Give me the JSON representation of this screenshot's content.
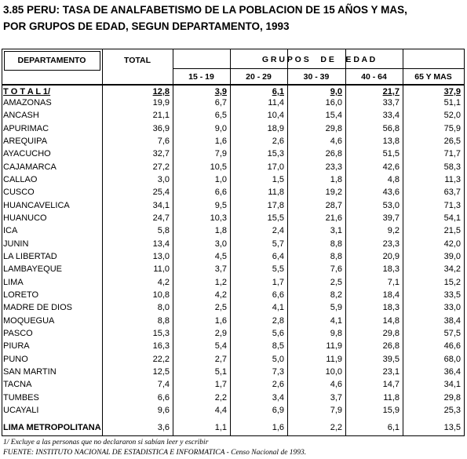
{
  "title": [
    "3.85   PERU: TASA DE ANALFABETISMO DE LA POBLACION DE 15 AÑOS Y MAS,",
    "POR GRUPOS DE EDAD, SEGUN DEPARTAMENTO, 1993"
  ],
  "table": {
    "header": {
      "departamento": "DEPARTAMENTO",
      "total": "TOTAL",
      "grupos": "G R U P O S     D E     E D A D",
      "groups": [
        "15 - 19",
        "20 - 29",
        "30 - 39",
        "40 - 64",
        "65 Y MAS"
      ]
    },
    "total_row": [
      "T O T A L 1/",
      "12,8",
      "3,9",
      "6,1",
      "9,0",
      "21,7",
      "37,9"
    ],
    "rows": [
      [
        "AMAZONAS",
        "19,9",
        "6,7",
        "11,4",
        "16,0",
        "33,7",
        "51,1"
      ],
      [
        "ANCASH",
        "21,1",
        "6,5",
        "10,4",
        "15,4",
        "33,4",
        "52,0"
      ],
      [
        "APURIMAC",
        "36,9",
        "9,0",
        "18,9",
        "29,8",
        "56,8",
        "75,9"
      ],
      [
        "AREQUIPA",
        "7,6",
        "1,6",
        "2,6",
        "4,6",
        "13,8",
        "26,5"
      ],
      [
        "AYACUCHO",
        "32,7",
        "7,9",
        "15,3",
        "26,8",
        "51,5",
        "71,7"
      ],
      [
        "CAJAMARCA",
        "27,2",
        "10,5",
        "17,0",
        "23,3",
        "42,6",
        "58,3"
      ],
      [
        "CALLAO",
        "3,0",
        "1,0",
        "1,5",
        "1,8",
        "4,8",
        "11,3"
      ],
      [
        "CUSCO",
        "25,4",
        "6,6",
        "11,8",
        "19,2",
        "43,6",
        "63,7"
      ],
      [
        "HUANCAVELICA",
        "34,1",
        "9,5",
        "17,8",
        "28,7",
        "53,0",
        "71,3"
      ],
      [
        "HUANUCO",
        "24,7",
        "10,3",
        "15,5",
        "21,6",
        "39,7",
        "54,1"
      ],
      [
        "ICA",
        "5,8",
        "1,8",
        "2,4",
        "3,1",
        "9,2",
        "21,5"
      ],
      [
        "JUNIN",
        "13,4",
        "3,0",
        "5,7",
        "8,8",
        "23,3",
        "42,0"
      ],
      [
        "LA LIBERTAD",
        "13,0",
        "4,5",
        "6,4",
        "8,8",
        "20,9",
        "39,0"
      ],
      [
        "LAMBAYEQUE",
        "11,0",
        "3,7",
        "5,5",
        "7,6",
        "18,3",
        "34,2"
      ],
      [
        "LIMA",
        "4,2",
        "1,2",
        "1,7",
        "2,5",
        "7,1",
        "15,2"
      ],
      [
        "LORETO",
        "10,8",
        "4,2",
        "6,6",
        "8,2",
        "18,4",
        "33,5"
      ],
      [
        "MADRE DE DIOS",
        "8,0",
        "2,5",
        "4,1",
        "5,9",
        "18,3",
        "33,0"
      ],
      [
        "MOQUEGUA",
        "8,8",
        "1,6",
        "2,8",
        "4,1",
        "14,8",
        "38,4"
      ],
      [
        "PASCO",
        "15,3",
        "2,9",
        "5,6",
        "9,8",
        "29,8",
        "57,5"
      ],
      [
        "PIURA",
        "16,3",
        "5,4",
        "8,5",
        "11,9",
        "26,8",
        "46,6"
      ],
      [
        "PUNO",
        "22,2",
        "2,7",
        "5,0",
        "11,9",
        "39,5",
        "68,0"
      ],
      [
        "SAN MARTIN",
        "12,5",
        "5,1",
        "7,3",
        "10,0",
        "23,1",
        "36,4"
      ],
      [
        "TACNA",
        "7,4",
        "1,7",
        "2,6",
        "4,6",
        "14,7",
        "34,1"
      ],
      [
        "TUMBES",
        "6,6",
        "2,2",
        "3,4",
        "3,7",
        "11,8",
        "29,8"
      ],
      [
        "UCAYALI",
        "9,6",
        "4,4",
        "6,9",
        "7,9",
        "15,9",
        "25,3"
      ]
    ],
    "metro_row": [
      "LIMA METROPOLITANA",
      "3,6",
      "1,1",
      "1,6",
      "2,2",
      "6,1",
      "13,5"
    ]
  },
  "footnotes": [
    "1/ Excluye a las personas que no declararon si sabían leer y escribir",
    "FUENTE: INSTITUTO NACIONAL DE ESTADISTICA E INFORMATICA - Censo Nacional de 1993."
  ]
}
